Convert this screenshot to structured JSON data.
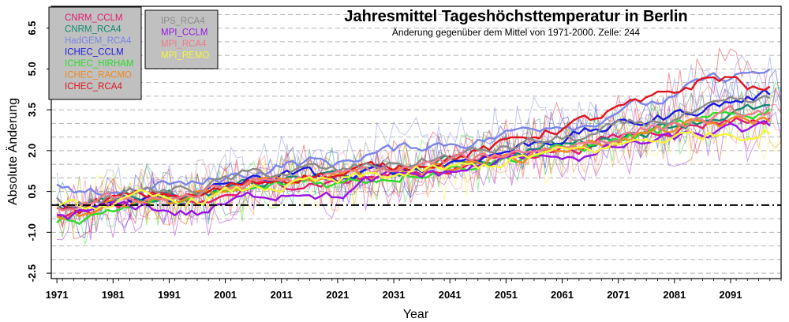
{
  "chart_data": {
    "type": "line",
    "title": "Jahresmittel Tageshöchsttemperatur in Berlin",
    "subtitle": "Änderung gegenüber dem Mittel von 1971-2000. Zelle: 244",
    "xlabel": "Year",
    "ylabel": "Absolute Änderung",
    "xlim": [
      1970,
      2100
    ],
    "ylim": [
      -2.7,
      7.3
    ],
    "x_ticks": [
      "1971",
      "1981",
      "1991",
      "2001",
      "2011",
      "2021",
      "2031",
      "2041",
      "2051",
      "2061",
      "2071",
      "2081",
      "2091"
    ],
    "y_ticks": [
      "-2.5",
      "-1.0",
      "0.5",
      "2.0",
      "3.5",
      "5.0",
      "6.5"
    ],
    "grid": "horizontal dashed",
    "reference_line_y": 0,
    "legend_placement": "top-left",
    "x": [
      1971,
      1976,
      1981,
      1986,
      1991,
      1996,
      2001,
      2006,
      2011,
      2016,
      2021,
      2026,
      2031,
      2036,
      2041,
      2046,
      2051,
      2056,
      2061,
      2066,
      2071,
      2076,
      2081,
      2086,
      2091,
      2096,
      2100
    ],
    "series": [
      {
        "name": "CNRM_CCLM",
        "color": "#e6196e",
        "values": [
          -0.3,
          -0.4,
          0.0,
          0.2,
          0.1,
          0.0,
          0.3,
          0.6,
          0.8,
          0.9,
          0.9,
          1.0,
          1.1,
          1.2,
          1.4,
          1.6,
          1.8,
          2.0,
          2.1,
          2.2,
          2.5,
          2.7,
          2.9,
          3.0,
          3.2,
          3.1,
          3.4
        ]
      },
      {
        "name": "CNRM_RCA4",
        "color": "#138872",
        "values": [
          -0.1,
          0.0,
          0.3,
          0.4,
          0.5,
          0.3,
          0.5,
          0.7,
          0.9,
          1.0,
          1.1,
          1.2,
          1.2,
          1.4,
          1.6,
          1.7,
          1.8,
          2.1,
          2.2,
          2.3,
          2.6,
          2.8,
          3.0,
          3.2,
          3.4,
          3.5,
          3.6
        ]
      },
      {
        "name": "HadGEM_RCA4",
        "color": "#7b86e8",
        "values": [
          0.6,
          0.2,
          0.5,
          0.6,
          0.8,
          0.7,
          1.0,
          1.2,
          1.5,
          1.6,
          1.5,
          1.9,
          2.0,
          2.2,
          2.3,
          2.4,
          2.6,
          2.9,
          3.1,
          3.0,
          3.6,
          3.7,
          3.9,
          4.5,
          4.7,
          4.9,
          4.8
        ]
      },
      {
        "name": "ICHEC_CCLM",
        "color": "#1a1adc",
        "values": [
          -0.2,
          -0.2,
          0.1,
          0.2,
          0.2,
          0.3,
          0.7,
          0.9,
          1.1,
          1.1,
          0.9,
          1.1,
          1.3,
          1.4,
          1.6,
          1.8,
          2.0,
          2.3,
          2.5,
          2.7,
          2.9,
          3.1,
          3.3,
          3.6,
          3.8,
          4.0,
          4.1
        ]
      },
      {
        "name": "ICHEC_HIRHAM",
        "color": "#2ddc2d",
        "values": [
          -0.5,
          -0.4,
          -0.1,
          0.0,
          0.2,
          0.2,
          0.4,
          0.5,
          0.7,
          0.9,
          0.8,
          1.0,
          1.1,
          1.3,
          1.4,
          1.6,
          1.7,
          1.9,
          2.0,
          2.2,
          2.4,
          2.6,
          2.8,
          3.0,
          3.2,
          3.4,
          3.6
        ]
      },
      {
        "name": "ICHEC_RACMO",
        "color": "#f08a1e",
        "values": [
          -0.3,
          -0.2,
          0.1,
          0.3,
          0.2,
          0.3,
          0.5,
          0.7,
          0.8,
          0.9,
          0.9,
          1.1,
          1.2,
          1.3,
          1.5,
          1.6,
          1.7,
          1.9,
          2.1,
          2.2,
          2.4,
          2.6,
          2.8,
          2.9,
          3.0,
          3.1,
          3.2
        ]
      },
      {
        "name": "ICHEC_RCA4",
        "color": "#e0141e",
        "values": [
          -0.2,
          -0.1,
          0.2,
          0.3,
          0.4,
          0.3,
          0.6,
          0.8,
          1.0,
          1.2,
          1.1,
          1.3,
          1.4,
          1.6,
          1.8,
          2.0,
          2.2,
          2.6,
          2.9,
          3.1,
          3.5,
          3.7,
          4.1,
          4.6,
          4.7,
          4.2,
          4.3
        ]
      },
      {
        "name": "IPS_RCA4",
        "color": "#8a8a8a",
        "values": [
          0.1,
          0.1,
          0.4,
          0.5,
          0.5,
          0.6,
          0.9,
          1.1,
          1.2,
          1.3,
          1.2,
          1.4,
          1.5,
          1.6,
          1.8,
          1.9,
          2.1,
          2.3,
          2.4,
          2.5,
          2.8,
          3.0,
          3.2,
          3.4,
          3.6,
          3.7,
          3.9
        ]
      },
      {
        "name": "MPI_CCLM",
        "color": "#9a14e6",
        "values": [
          -0.4,
          -0.3,
          -0.1,
          0.0,
          -0.2,
          -0.3,
          0.0,
          0.3,
          0.5,
          0.6,
          0.3,
          0.8,
          1.0,
          1.1,
          1.2,
          1.4,
          1.6,
          1.8,
          1.9,
          1.8,
          2.1,
          2.3,
          2.4,
          2.6,
          2.7,
          2.7,
          2.9
        ]
      },
      {
        "name": "MPI_RCA4",
        "color": "#f07a8a",
        "values": [
          -0.1,
          0.0,
          0.2,
          0.3,
          0.3,
          0.4,
          0.6,
          0.8,
          0.9,
          1.0,
          1.0,
          1.2,
          1.3,
          1.4,
          1.6,
          1.7,
          1.9,
          2.1,
          2.2,
          2.3,
          2.6,
          2.8,
          3.0,
          3.1,
          3.3,
          3.3,
          3.5
        ]
      },
      {
        "name": "MPI_REMO",
        "color": "#f5f53c",
        "values": [
          -0.2,
          -0.1,
          0.1,
          0.2,
          0.1,
          0.2,
          0.4,
          0.6,
          0.7,
          0.8,
          0.8,
          1.0,
          1.1,
          1.2,
          1.3,
          1.4,
          1.6,
          1.8,
          1.9,
          2.0,
          2.2,
          2.4,
          2.5,
          2.6,
          2.7,
          2.7,
          2.9
        ]
      }
    ]
  }
}
